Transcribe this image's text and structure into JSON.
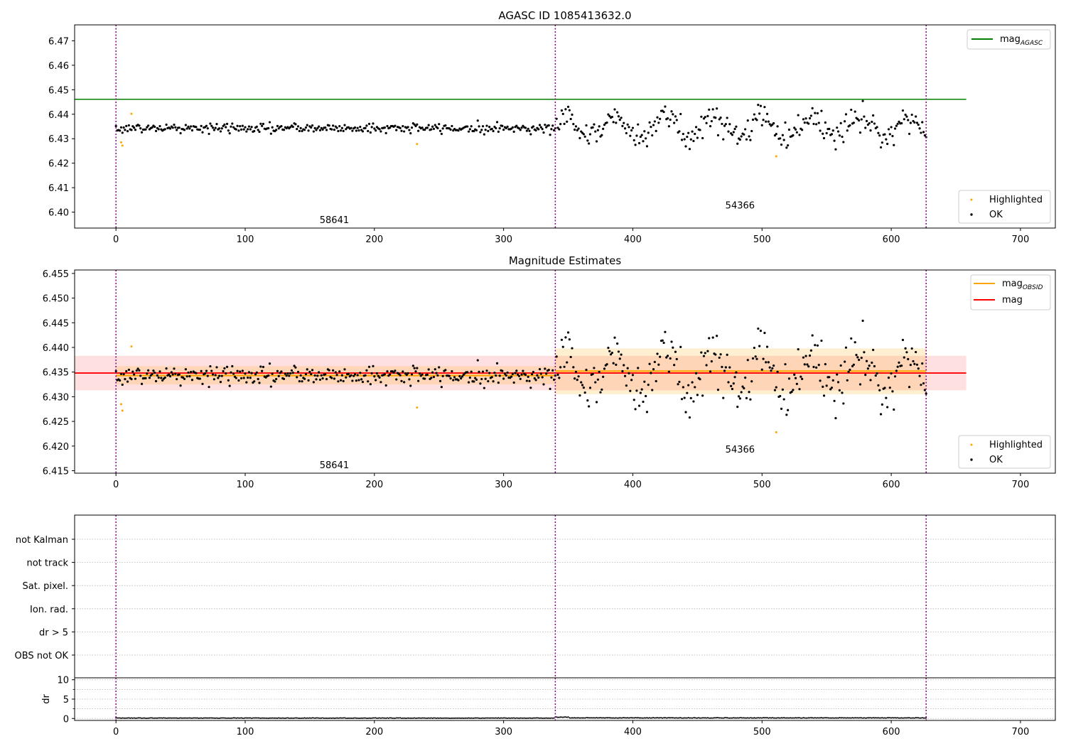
{
  "figure": {
    "title": "AGASC ID 1085413632.0"
  },
  "chart_data": [
    {
      "type": "scatter",
      "title": "AGASC ID 1085413632.0",
      "xlim": [
        -32,
        727
      ],
      "ylim": [
        6.3935,
        6.4765
      ],
      "x_ticks": [
        0,
        100,
        200,
        300,
        400,
        500,
        600,
        700
      ],
      "y_ticks": [
        6.4,
        6.41,
        6.42,
        6.43,
        6.44,
        6.45,
        6.46,
        6.47
      ],
      "y_tick_decimals": 2,
      "grid": false,
      "legend_placement_top": "top-right",
      "legend_placement_bottom": "bottom-right",
      "legend_top": [
        {
          "label": "mag",
          "subscript": "AGASC",
          "color": "#008000",
          "kind": "line"
        }
      ],
      "legend_bottom": [
        {
          "label": "Highlighted",
          "color": "#ffa500",
          "kind": "dot"
        },
        {
          "label": "OK",
          "color": "#000000",
          "kind": "dot"
        }
      ],
      "reference_line": {
        "name": "mag_AGASC",
        "y": 6.4461,
        "x_range": [
          -32,
          658
        ],
        "color": "#008000"
      },
      "obsid_boundaries": [
        0,
        340,
        627
      ],
      "annotations": [
        {
          "text": "58641",
          "x": 169,
          "y": 6.3955
        },
        {
          "text": "54366",
          "x": 483,
          "y": 6.4015
        }
      ],
      "highlighted_points": [
        {
          "x": 4,
          "y": 6.4285
        },
        {
          "x": 5,
          "y": 6.4272
        },
        {
          "x": 12,
          "y": 6.4402
        },
        {
          "x": 233,
          "y": 6.4278
        },
        {
          "x": 511,
          "y": 6.4228
        }
      ],
      "ok_series": {
        "color": "#000000",
        "segments": [
          {
            "x_from": 0,
            "x_to": 339,
            "level": 6.4343,
            "scatter": 0.0016
          },
          {
            "x_from": 340,
            "x_to": 627,
            "level": 6.435,
            "scatter": 0.0045
          }
        ]
      }
    },
    {
      "type": "scatter",
      "title": "Magnitude Estimates",
      "xlim": [
        -32,
        727
      ],
      "ylim": [
        6.4145,
        6.4557
      ],
      "x_ticks": [
        0,
        100,
        200,
        300,
        400,
        500,
        600,
        700
      ],
      "y_ticks": [
        6.415,
        6.42,
        6.425,
        6.43,
        6.435,
        6.44,
        6.445,
        6.45,
        6.455
      ],
      "y_tick_decimals": 3,
      "grid": false,
      "legend_placement_top": "top-right",
      "legend_placement_bottom": "bottom-right",
      "legend_top": [
        {
          "label": "mag",
          "subscript": "OBSID",
          "color": "#ffa500",
          "kind": "line"
        },
        {
          "label": "mag",
          "subscript": "",
          "color": "#ff0000",
          "kind": "line"
        }
      ],
      "legend_bottom": [
        {
          "label": "Highlighted",
          "color": "#ffa500",
          "kind": "dot"
        },
        {
          "label": "OK",
          "color": "#000000",
          "kind": "dot"
        }
      ],
      "mag_line": {
        "y": 6.4348,
        "band": [
          6.4313,
          6.4383
        ],
        "x_range": [
          -32,
          658
        ],
        "color": "#ff0000"
      },
      "obsid_estimates": [
        {
          "x_range": [
            0,
            340
          ],
          "y": 6.4343,
          "band": [
            6.4325,
            6.4362
          ]
        },
        {
          "x_range": [
            340,
            627
          ],
          "y": 6.4352,
          "band": [
            6.4305,
            6.4398
          ]
        }
      ],
      "obsid_boundaries": [
        0,
        340,
        627
      ],
      "annotations": [
        {
          "text": "58641",
          "x": 169,
          "y": 6.4155
        },
        {
          "text": "54366",
          "x": 483,
          "y": 6.4187
        }
      ],
      "highlighted_points": [
        {
          "x": 4,
          "y": 6.4285
        },
        {
          "x": 5,
          "y": 6.4272
        },
        {
          "x": 12,
          "y": 6.4402
        },
        {
          "x": 233,
          "y": 6.4278
        },
        {
          "x": 511,
          "y": 6.4228
        }
      ],
      "ok_series": {
        "color": "#000000",
        "segments": [
          {
            "x_from": 0,
            "x_to": 339,
            "level": 6.4343,
            "scatter": 0.0016
          },
          {
            "x_from": 340,
            "x_to": 627,
            "level": 6.435,
            "scatter": 0.0045
          }
        ]
      }
    },
    {
      "type": "scatter",
      "xlim": [
        -32,
        727
      ],
      "categories": [
        "not Kalman",
        "not track",
        "Sat. pixel.",
        "Ion. rad.",
        "dr > 5",
        "OBS not OK"
      ],
      "grid": "dotted horizontal",
      "flagged_points": [],
      "obsid_boundaries": [
        0,
        340,
        627
      ]
    },
    {
      "type": "line",
      "xlim": [
        -32,
        727
      ],
      "ylim": [
        -0.5,
        10.5
      ],
      "ylabel": "dr",
      "x_ticks": [
        0,
        100,
        200,
        300,
        400,
        500,
        600,
        700
      ],
      "y_ticks": [
        0,
        5,
        10
      ],
      "minor_y_ticks": [
        2.5,
        7.5
      ],
      "grid": "dotted horizontal",
      "series": [
        {
          "x_from": 0,
          "x_to": 339,
          "level": 0.1
        },
        {
          "x_from": 340,
          "x_to": 350,
          "level": 0.35
        },
        {
          "x_from": 351,
          "x_to": 627,
          "level": 0.15
        }
      ],
      "obsid_boundaries": [
        0,
        340,
        627
      ]
    }
  ]
}
